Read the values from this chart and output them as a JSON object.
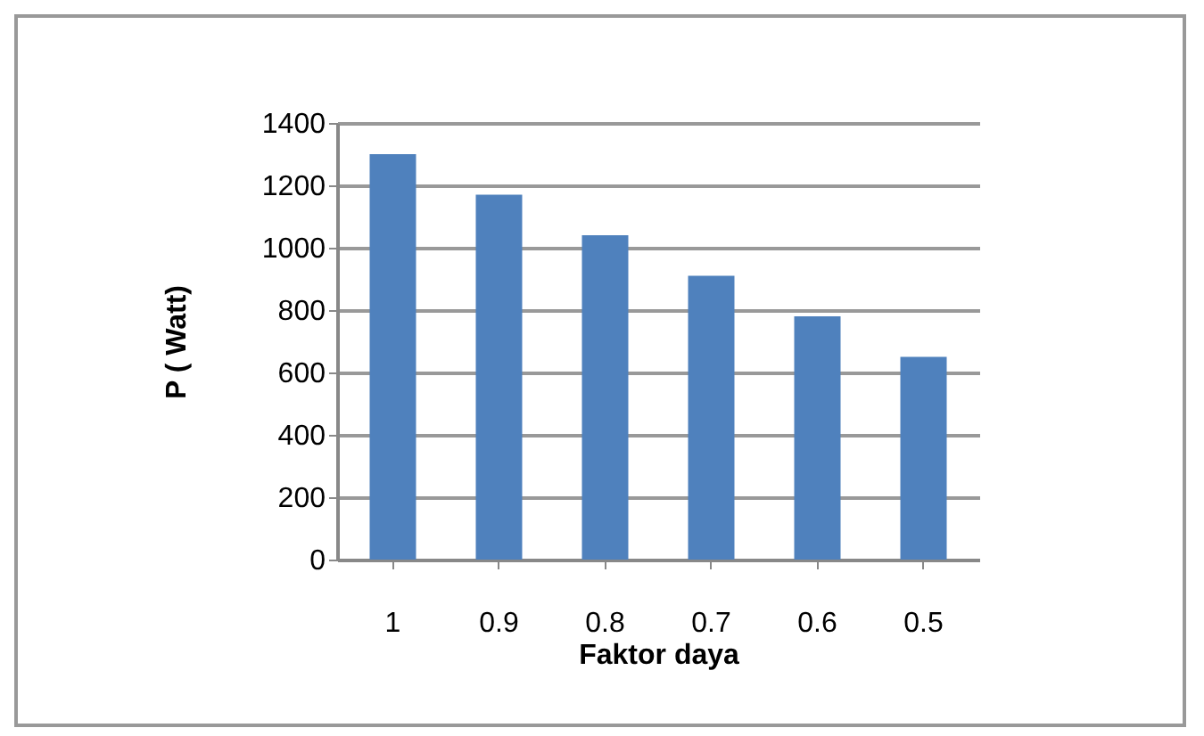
{
  "chart_data": {
    "type": "bar",
    "xlabel": "Faktor daya",
    "ylabel": "P ( Watt)",
    "categories": [
      "1",
      "0.9",
      "0.8",
      "0.7",
      "0.6",
      "0.5"
    ],
    "values": [
      1300,
      1170,
      1040,
      910,
      780,
      650
    ],
    "color": "#4f81bd",
    "ylim": [
      0,
      1400
    ],
    "yticks": [
      0,
      200,
      400,
      600,
      800,
      1000,
      1200,
      1400
    ],
    "grid": "y"
  }
}
